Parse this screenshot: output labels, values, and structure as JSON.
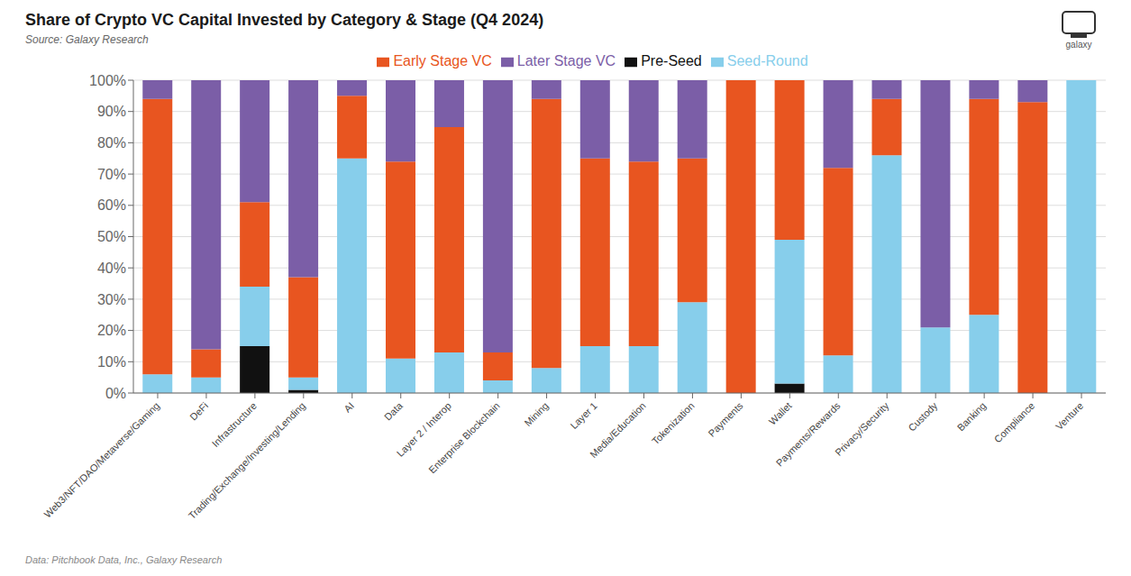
{
  "chart_data": {
    "type": "bar",
    "title": "Share of Crypto VC Capital Invested by Category & Stage (Q4 2024)",
    "subtitle": "Source: Galaxy Research",
    "annotations": [
      "Data: Pitchbook Data, Inc., Galaxy Research",
      "galaxy"
    ],
    "categories": [
      "Web3/NFT/DAO/Metaverse/Gaming",
      "DeFi",
      "Infrastructure",
      "Trading/Exchange/Investing/Lending",
      "AI",
      "Data",
      "Layer 2 / Interop",
      "Enterprise Blockchain",
      "Mining",
      "Layer 1",
      "Media/Education",
      "Tokenization",
      "Payments",
      "Wallet",
      "Payments/Rewards",
      "Privacy/Security",
      "Custody",
      "Banking",
      "Compliance",
      "Venture"
    ],
    "series": [
      {
        "name": "Pre-Seed",
        "color": "#111111",
        "values": [
          0,
          0,
          15,
          1,
          0,
          0,
          0,
          0,
          0,
          0,
          0,
          0,
          0,
          3,
          0,
          0,
          0,
          0,
          0,
          0
        ]
      },
      {
        "name": "Seed-Round",
        "color": "#87CEEB",
        "values": [
          6,
          5,
          19,
          4,
          75,
          11,
          13,
          4,
          8,
          15,
          15,
          29,
          0,
          46,
          12,
          76,
          21,
          25,
          0,
          100
        ]
      },
      {
        "name": "Early Stage VC",
        "color": "#E85520",
        "values": [
          88,
          9,
          27,
          32,
          20,
          63,
          72,
          9,
          86,
          60,
          59,
          46,
          100,
          51,
          60,
          18,
          0,
          69,
          93,
          0
        ]
      },
      {
        "name": "Later Stage VC",
        "color": "#7B5EA7",
        "values": [
          6,
          86,
          39,
          63,
          5,
          26,
          15,
          87,
          6,
          25,
          26,
          25,
          0,
          0,
          28,
          6,
          79,
          6,
          7,
          0
        ]
      }
    ],
    "stacked": true,
    "ylim": [
      0,
      100
    ],
    "yticks": [
      {
        "value": 0,
        "label": "0%"
      },
      {
        "value": 10,
        "label": "10%"
      },
      {
        "value": 20,
        "label": "20%"
      },
      {
        "value": 30,
        "label": "30%"
      },
      {
        "value": 40,
        "label": "40%"
      },
      {
        "value": 50,
        "label": "50%"
      },
      {
        "value": 60,
        "label": "60%"
      },
      {
        "value": 70,
        "label": "70%"
      },
      {
        "value": 80,
        "label": "80%"
      },
      {
        "value": 90,
        "label": "90%"
      },
      {
        "value": 100,
        "label": "100%"
      }
    ],
    "grid": true,
    "legend": "top"
  }
}
